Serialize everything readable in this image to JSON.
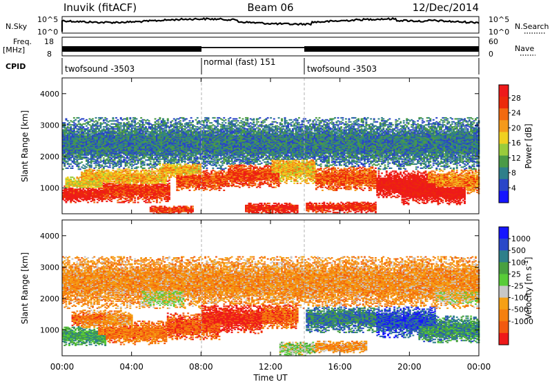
{
  "header": {
    "station": "Inuvik (fitACF)",
    "beam": "Beam 06",
    "date": "12/Dec/2014"
  },
  "top_panels": {
    "nsky_label": "N.Sky",
    "nsky_ticks": [
      "10^5",
      "10^0"
    ],
    "nsearch_label": "N.Search",
    "nsearch_ticks": [
      "10^5",
      "10^0"
    ],
    "freq_label": "Freq.",
    "freq_unit": "[MHz]",
    "freq_ticks": [
      "18",
      "8"
    ],
    "nave_label": "Nave",
    "nave_ticks": [
      "60",
      "0"
    ],
    "cpid_label": "CPID",
    "cpid_segments": [
      {
        "label": "twofsound -3503",
        "start": 0,
        "end": 8
      },
      {
        "label": "normal (fast) 151",
        "start": 8,
        "end": 14
      },
      {
        "label": "twofsound -3503",
        "start": 14,
        "end": 24
      }
    ]
  },
  "chart_data": [
    {
      "type": "heatmap",
      "panel": "power",
      "ylabel": "Slant Range [km]",
      "ylim": [
        180,
        4500
      ],
      "yticks": [
        "1000",
        "2000",
        "3000",
        "4000"
      ],
      "xlim": [
        0,
        24
      ],
      "colorbar_label": "Power [dB]",
      "colorbar_ticks": [
        "4",
        "8",
        "12",
        "16",
        "20",
        "24",
        "28"
      ],
      "colorbar_colors": [
        "#1515ff",
        "#2a45c8",
        "#2e7f8a",
        "#4a9a46",
        "#9acc3c",
        "#f0d020",
        "#f59a1a",
        "#f26a10",
        "#ec2a0a",
        "#ee1a1a"
      ],
      "bands": [
        {
          "t0": 0.0,
          "t1": 2.3,
          "center": 800,
          "width": 260,
          "level": 0.92
        },
        {
          "t0": 0.1,
          "t1": 2.3,
          "center": 1150,
          "width": 220,
          "level": 0.55
        },
        {
          "t0": 1.0,
          "t1": 3.5,
          "center": 1350,
          "width": 260,
          "level": 0.6
        },
        {
          "t0": 2.3,
          "t1": 6.2,
          "center": 900,
          "width": 380,
          "level": 0.85
        },
        {
          "t0": 3.0,
          "t1": 6.0,
          "center": 1300,
          "width": 300,
          "level": 0.62
        },
        {
          "t0": 5.5,
          "t1": 8.0,
          "center": 1550,
          "width": 260,
          "level": 0.6
        },
        {
          "t0": 6.5,
          "t1": 9.5,
          "center": 1250,
          "width": 330,
          "level": 0.8
        },
        {
          "t0": 9.5,
          "t1": 12.5,
          "center": 1400,
          "width": 380,
          "level": 0.82
        },
        {
          "t0": 12.0,
          "t1": 14.5,
          "center": 1600,
          "width": 450,
          "level": 0.6
        },
        {
          "t0": 5.0,
          "t1": 7.5,
          "center": 300,
          "width": 130,
          "level": 0.85
        },
        {
          "t0": 10.5,
          "t1": 13.5,
          "center": 350,
          "width": 170,
          "level": 0.9
        },
        {
          "t0": 14.0,
          "t1": 18.0,
          "center": 380,
          "width": 170,
          "level": 0.88
        },
        {
          "t0": 14.5,
          "t1": 18.0,
          "center": 1300,
          "width": 380,
          "level": 0.78
        },
        {
          "t0": 18.0,
          "t1": 21.5,
          "center": 1100,
          "width": 420,
          "level": 0.95
        },
        {
          "t0": 19.5,
          "t1": 23.2,
          "center": 850,
          "width": 380,
          "level": 0.95
        },
        {
          "t0": 21.0,
          "t1": 24.0,
          "center": 1200,
          "width": 380,
          "level": 0.7
        },
        {
          "t0": 0.0,
          "t1": 24.0,
          "center": 2400,
          "width": 800,
          "level": 0.25
        }
      ]
    },
    {
      "type": "heatmap",
      "panel": "velocity",
      "ylabel": "Slant Range [km]",
      "ylim": [
        180,
        4500
      ],
      "yticks": [
        "1000",
        "2000",
        "3000",
        "4000"
      ],
      "xlabel": "Time UT",
      "xlim": [
        0,
        24
      ],
      "xticks": [
        "00:00",
        "04:00",
        "08:00",
        "12:00",
        "16:00",
        "20:00",
        "00:00"
      ],
      "colorbar_label": "Velocity [m s",
      "colorbar_label_sup": "-1",
      "colorbar_label_end": "]",
      "colorbar_ticks": [
        "1000",
        "500",
        "100",
        "25",
        "-25",
        "-100",
        "-500",
        "-1000"
      ],
      "colorbar_colors": [
        "#1515ff",
        "#2a48c8",
        "#2e7f8a",
        "#48a040",
        "#58cc38",
        "#c8c8c8",
        "#f5a015",
        "#f5800f",
        "#f25a10",
        "#ee1a1a"
      ],
      "bands": [
        {
          "t0": 0.0,
          "t1": 2.5,
          "center": 800,
          "width": 320,
          "level": 0.65
        },
        {
          "t0": 0.5,
          "t1": 2.5,
          "center": 1350,
          "width": 240,
          "level": 0.2
        },
        {
          "t0": 1.0,
          "t1": 4.0,
          "center": 1300,
          "width": 320,
          "level": 0.3
        },
        {
          "t0": 2.0,
          "t1": 6.0,
          "center": 900,
          "width": 380,
          "level": 0.22
        },
        {
          "t0": 4.5,
          "t1": 7.0,
          "center": 2100,
          "width": 380,
          "level": 0.45
        },
        {
          "t0": 6.0,
          "t1": 9.0,
          "center": 1100,
          "width": 420,
          "level": 0.15
        },
        {
          "t0": 8.0,
          "t1": 11.5,
          "center": 1350,
          "width": 480,
          "level": 0.05
        },
        {
          "t0": 11.5,
          "t1": 13.5,
          "center": 1450,
          "width": 420,
          "level": 0.18
        },
        {
          "t0": 12.5,
          "t1": 14.5,
          "center": 400,
          "width": 220,
          "level": 0.5
        },
        {
          "t0": 14.0,
          "t1": 18.0,
          "center": 1350,
          "width": 420,
          "level": 0.75
        },
        {
          "t0": 14.5,
          "t1": 17.5,
          "center": 450,
          "width": 180,
          "level": 0.3
        },
        {
          "t0": 18.0,
          "t1": 21.5,
          "center": 1250,
          "width": 480,
          "level": 0.85
        },
        {
          "t0": 20.5,
          "t1": 24.0,
          "center": 1000,
          "width": 420,
          "level": 0.7
        },
        {
          "t0": 21.5,
          "t1": 24.0,
          "center": 2100,
          "width": 350,
          "level": 0.42
        },
        {
          "t0": 0.0,
          "t1": 24.0,
          "center": 2500,
          "width": 800,
          "level": 0.3
        }
      ]
    }
  ]
}
